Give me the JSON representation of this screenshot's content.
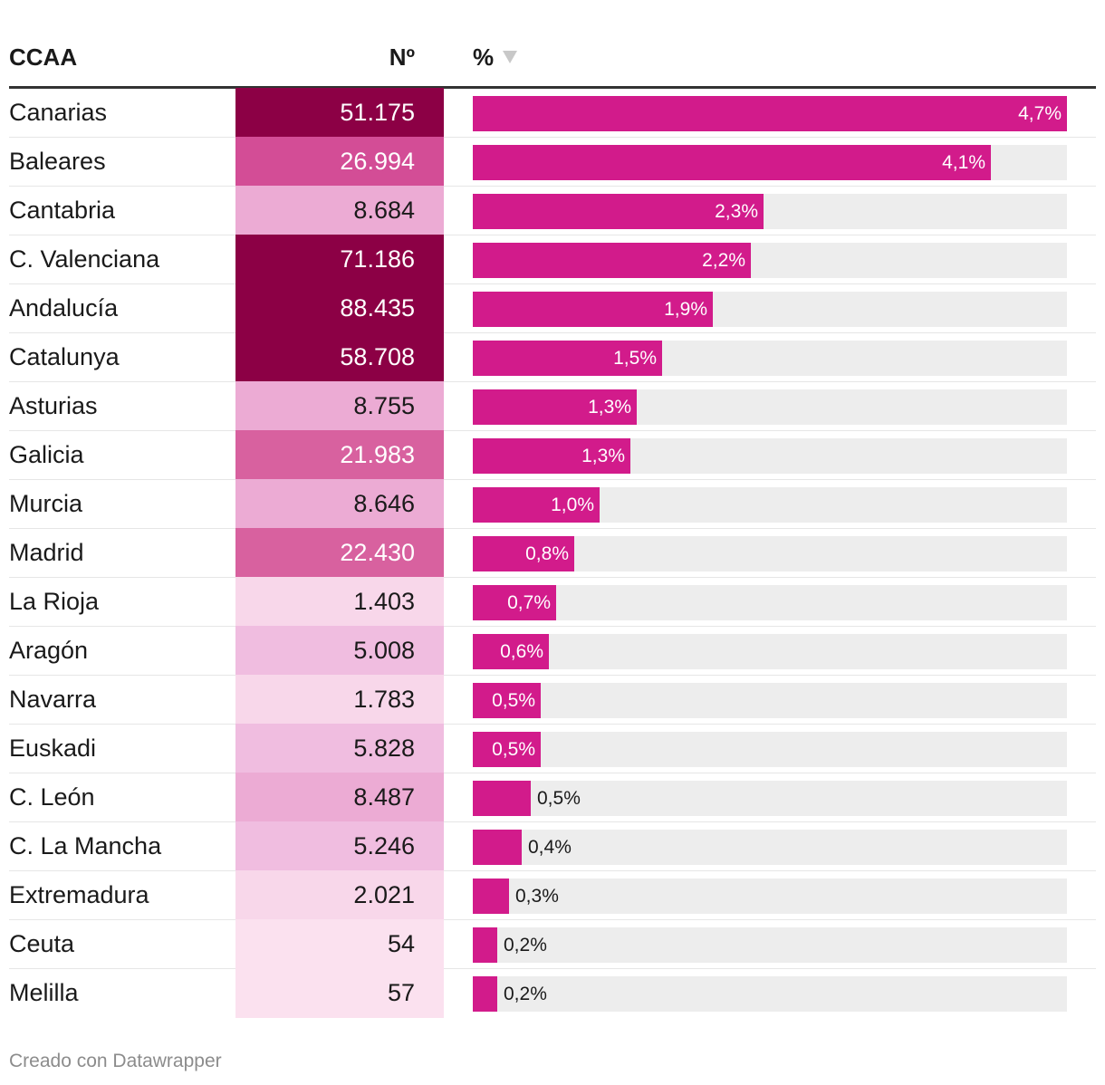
{
  "header": {
    "ccaa": "CCAA",
    "n": "Nº",
    "pct": "%"
  },
  "colors": {
    "bar": "#d21b8b",
    "track": "#ededed",
    "scale": [
      "#fbe1ef",
      "#f8d7ea",
      "#f0bde0",
      "#ecabd4",
      "#d8619f",
      "#d34d96",
      "#8c0045"
    ]
  },
  "chart_data": {
    "type": "table",
    "columns": [
      "CCAA",
      "Nº",
      "%"
    ],
    "xlim": [
      0,
      4.7
    ],
    "rows": [
      {
        "ccaa": "Canarias",
        "n": "51.175",
        "n_value": 51175,
        "pct": 4.7,
        "pct_label": "4,7%"
      },
      {
        "ccaa": "Baleares",
        "n": "26.994",
        "n_value": 26994,
        "pct": 4.1,
        "pct_label": "4,1%"
      },
      {
        "ccaa": "Cantabria",
        "n": "8.684",
        "n_value": 8684,
        "pct": 2.3,
        "pct_label": "2,3%"
      },
      {
        "ccaa": "C. Valenciana",
        "n": "71.186",
        "n_value": 71186,
        "pct": 2.2,
        "pct_label": "2,2%"
      },
      {
        "ccaa": "Andalucía",
        "n": "88.435",
        "n_value": 88435,
        "pct": 1.9,
        "pct_label": "1,9%"
      },
      {
        "ccaa": "Catalunya",
        "n": "58.708",
        "n_value": 58708,
        "pct": 1.5,
        "pct_label": "1,5%"
      },
      {
        "ccaa": "Asturias",
        "n": "8.755",
        "n_value": 8755,
        "pct": 1.3,
        "pct_label": "1,3%"
      },
      {
        "ccaa": "Galicia",
        "n": "21.983",
        "n_value": 21983,
        "pct": 1.25,
        "pct_label": "1,3%"
      },
      {
        "ccaa": "Murcia",
        "n": "8.646",
        "n_value": 8646,
        "pct": 1.0,
        "pct_label": "1,0%"
      },
      {
        "ccaa": "Madrid",
        "n": "22.430",
        "n_value": 22430,
        "pct": 0.8,
        "pct_label": "0,8%"
      },
      {
        "ccaa": "La Rioja",
        "n": "1.403",
        "n_value": 1403,
        "pct": 0.66,
        "pct_label": "0,7%"
      },
      {
        "ccaa": "Aragón",
        "n": "5.008",
        "n_value": 5008,
        "pct": 0.6,
        "pct_label": "0,6%"
      },
      {
        "ccaa": "Navarra",
        "n": "1.783",
        "n_value": 1783,
        "pct": 0.54,
        "pct_label": "0,5%"
      },
      {
        "ccaa": "Euskadi",
        "n": "5.828",
        "n_value": 5828,
        "pct": 0.54,
        "pct_label": "0,5%"
      },
      {
        "ccaa": "C. León",
        "n": "8.487",
        "n_value": 8487,
        "pct": 0.46,
        "pct_label": "0,5%"
      },
      {
        "ccaa": "C. La Mancha",
        "n": "5.246",
        "n_value": 5246,
        "pct": 0.39,
        "pct_label": "0,4%"
      },
      {
        "ccaa": "Extremadura",
        "n": "2.021",
        "n_value": 2021,
        "pct": 0.29,
        "pct_label": "0,3%"
      },
      {
        "ccaa": "Ceuta",
        "n": "54",
        "n_value": 54,
        "pct": 0.19,
        "pct_label": "0,2%"
      },
      {
        "ccaa": "Melilla",
        "n": "57",
        "n_value": 57,
        "pct": 0.19,
        "pct_label": "0,2%"
      }
    ]
  },
  "footer": "Creado con Datawrapper"
}
